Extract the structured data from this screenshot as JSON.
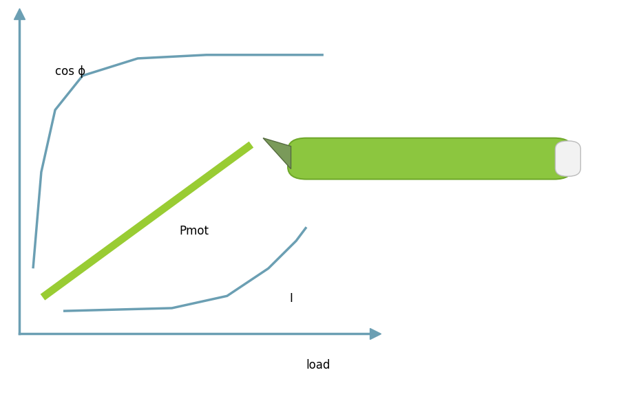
{
  "chart_data": {
    "type": "line",
    "x_label": "load",
    "xlim": [
      0,
      100
    ],
    "ylim": [
      0,
      100
    ],
    "tick_labels": false,
    "grid": false,
    "series": [
      {
        "name": "cos ϕ",
        "color": "#6b9fb3",
        "type": "line",
        "x": [
          3.9,
          6.2,
          10.1,
          17.8,
          33.3,
          52.6,
          85.5
        ],
        "values": [
          20.4,
          50.5,
          69.9,
          80.6,
          86.0,
          87.1,
          87.1
        ]
      },
      {
        "name": "Pmot",
        "color": "#99cc33",
        "type": "line",
        "x": [
          6.6,
          65.2
        ],
        "values": [
          11.4,
          59.1
        ]
      },
      {
        "name": "I",
        "color": "#6b9fb3",
        "type": "line",
        "x": [
          12.4,
          42.9,
          58.4,
          70.0,
          77.8,
          80.7
        ],
        "values": [
          7.1,
          8.0,
          11.8,
          20.4,
          29.0,
          33.3
        ]
      }
    ]
  }
}
